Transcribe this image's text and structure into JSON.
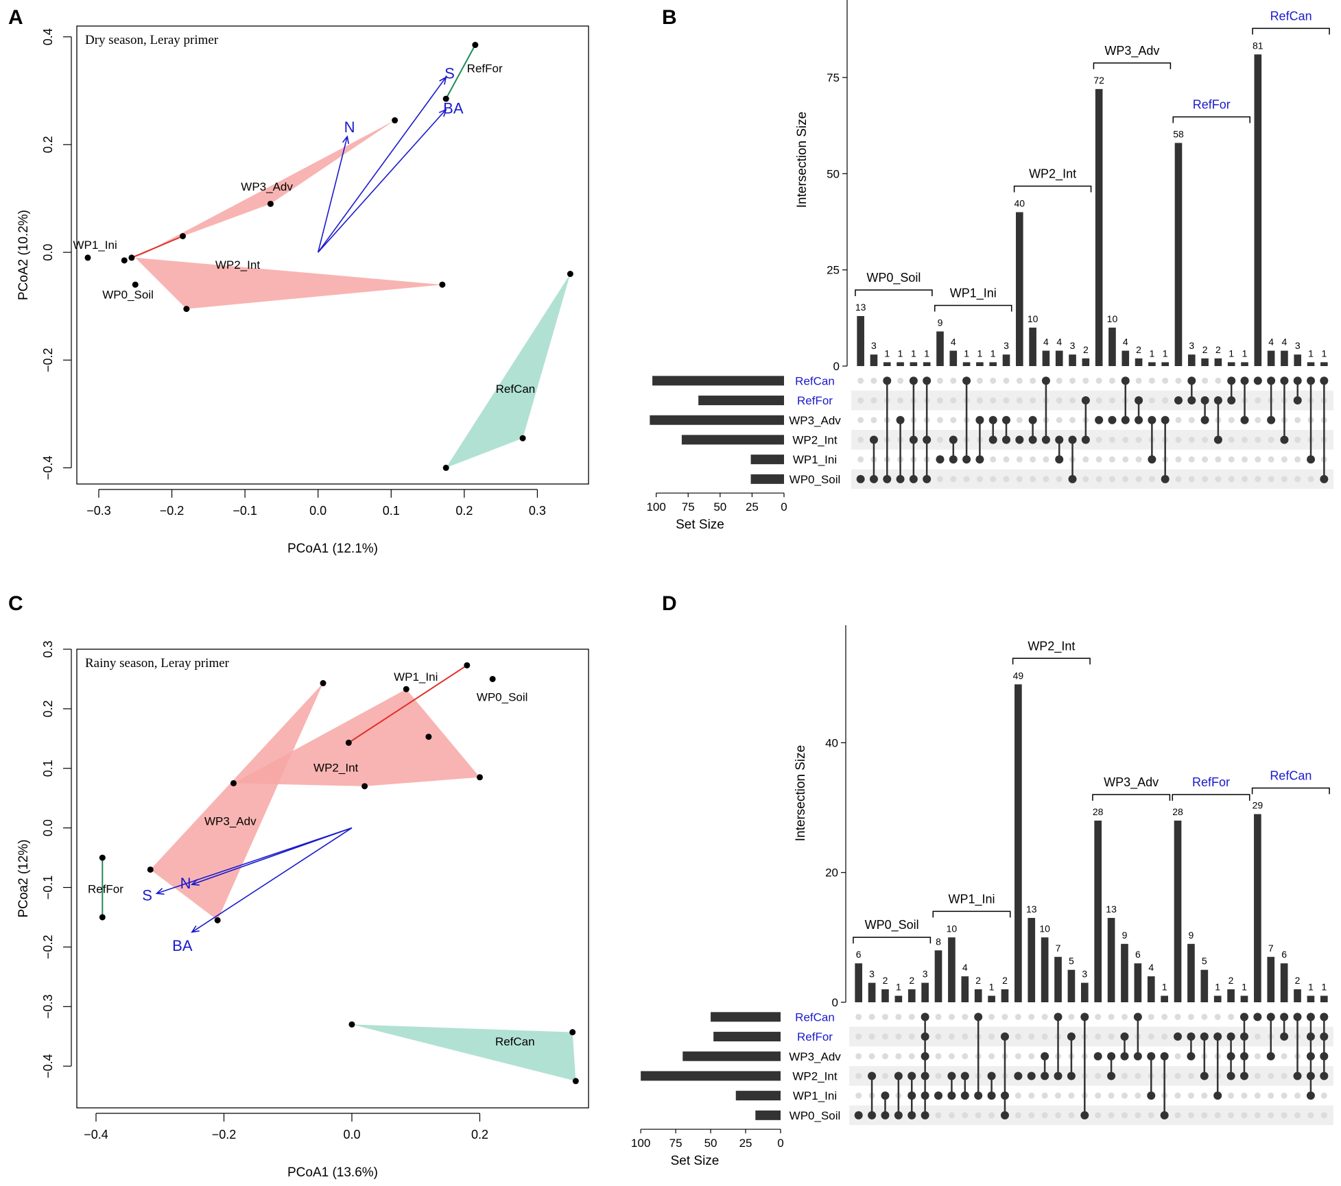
{
  "chart_data": [
    {
      "panel": "A",
      "type": "scatter",
      "title": "Dry season, Leray primer",
      "xlabel": "PCoA1 (12.1%)",
      "ylabel": "PCoA2 (10.2%)",
      "xlim": [
        -0.33,
        0.37
      ],
      "ylim": [
        -0.43,
        0.42
      ],
      "xticks": [
        -0.3,
        -0.2,
        -0.1,
        0.0,
        0.1,
        0.2,
        0.3
      ],
      "yticks": [
        -0.4,
        -0.2,
        0.0,
        0.2,
        0.4
      ],
      "xtick_labels": [
        "−0.3",
        "−0.2",
        "−0.1",
        "0.0",
        "0.1",
        "0.2",
        "0.3"
      ],
      "ytick_labels": [
        "−0.4",
        "−0.2",
        "0.0",
        "0.2",
        "0.4"
      ],
      "hulls": [
        {
          "name": "WP2_Int",
          "color": "#f7a7a4",
          "points": [
            [
              -0.25,
              -0.01
            ],
            [
              0.17,
              -0.06
            ],
            [
              -0.18,
              -0.105
            ]
          ]
        },
        {
          "name": "WP3_Adv",
          "color": "#f7a7a4",
          "points": [
            [
              -0.25,
              -0.01
            ],
            [
              -0.185,
              0.03
            ],
            [
              -0.065,
              0.09
            ],
            [
              0.105,
              0.245
            ]
          ]
        },
        {
          "name": "RefCan",
          "color": "#a3dccb",
          "points": [
            [
              0.345,
              -0.04
            ],
            [
              0.28,
              -0.345
            ],
            [
              0.175,
              -0.4
            ]
          ]
        }
      ],
      "segments": [
        {
          "name": "RefFor",
          "color": "#1e8a5a",
          "points": [
            [
              0.215,
              0.385
            ],
            [
              0.175,
              0.285
            ]
          ]
        },
        {
          "name": "WP1_Ini",
          "color": "#e0302a",
          "points": [
            [
              -0.255,
              -0.01
            ],
            [
              -0.185,
              0.03
            ]
          ]
        }
      ],
      "points": [
        [
          -0.315,
          -0.01
        ],
        [
          -0.265,
          -0.015
        ],
        [
          -0.255,
          -0.01
        ],
        [
          -0.25,
          -0.06
        ],
        [
          -0.18,
          -0.105
        ],
        [
          -0.185,
          0.03
        ],
        [
          -0.065,
          0.09
        ],
        [
          0.105,
          0.245
        ],
        [
          0.17,
          -0.06
        ],
        [
          0.175,
          0.285
        ],
        [
          0.215,
          0.385
        ],
        [
          0.345,
          -0.04
        ],
        [
          0.28,
          -0.345
        ],
        [
          0.175,
          -0.4
        ]
      ],
      "group_labels": [
        {
          "text": "WP1_Ini",
          "x": -0.305,
          "y": 0.012
        },
        {
          "text": "WP0_Soil",
          "x": -0.26,
          "y": -0.08
        },
        {
          "text": "WP2_Int",
          "x": -0.11,
          "y": -0.025
        },
        {
          "text": "WP3_Adv",
          "x": -0.07,
          "y": 0.12
        },
        {
          "text": "RefFor",
          "x": 0.228,
          "y": 0.34
        },
        {
          "text": "RefCan",
          "x": 0.27,
          "y": -0.255
        }
      ],
      "arrows": [
        {
          "label": "N",
          "from": [
            0.0,
            0.0
          ],
          "to": [
            0.04,
            0.215
          ],
          "label_at": [
            0.043,
            0.23
          ]
        },
        {
          "label": "S",
          "from": [
            0.0,
            0.0
          ],
          "to": [
            0.175,
            0.325
          ],
          "label_at": [
            0.18,
            0.33
          ]
        },
        {
          "label": "BA",
          "from": [
            0.0,
            0.0
          ],
          "to": [
            0.175,
            0.265
          ],
          "label_at": [
            0.185,
            0.265
          ]
        }
      ]
    },
    {
      "panel": "B",
      "type": "upset",
      "ylabel": "Intersection Size",
      "ylim": [
        0,
        93
      ],
      "yticks": [
        0,
        25,
        50,
        75
      ],
      "sets": [
        "RefCan",
        "RefFor",
        "WP3_Adv",
        "WP2_Int",
        "WP1_Ini",
        "WP0_Soil"
      ],
      "set_label_colors": [
        "#1a1acc",
        "#1a1acc",
        "#000000",
        "#000000",
        "#000000",
        "#000000"
      ],
      "set_sizes": [
        103,
        67,
        105,
        80,
        26,
        26
      ],
      "set_size_max": 110,
      "set_size_ticks": [
        100,
        75,
        50,
        25,
        0
      ],
      "set_size_label": "Set Size",
      "intersections": [
        {
          "size": 13,
          "sets": [
            5
          ]
        },
        {
          "size": 3,
          "sets": [
            3,
            5
          ]
        },
        {
          "size": 1,
          "sets": [
            0,
            5
          ]
        },
        {
          "size": 1,
          "sets": [
            2,
            5
          ]
        },
        {
          "size": 1,
          "sets": [
            0,
            3,
            5
          ]
        },
        {
          "size": 1,
          "sets": [
            0,
            3,
            5
          ]
        },
        {
          "size": 9,
          "sets": [
            4
          ]
        },
        {
          "size": 4,
          "sets": [
            3,
            4
          ]
        },
        {
          "size": 1,
          "sets": [
            0,
            4
          ]
        },
        {
          "size": 1,
          "sets": [
            2,
            4
          ]
        },
        {
          "size": 1,
          "sets": [
            2,
            3
          ]
        },
        {
          "size": 3,
          "sets": [
            2,
            3
          ]
        },
        {
          "size": 40,
          "sets": [
            3
          ]
        },
        {
          "size": 10,
          "sets": [
            2,
            3
          ]
        },
        {
          "size": 4,
          "sets": [
            0,
            3
          ]
        },
        {
          "size": 4,
          "sets": [
            3,
            4
          ]
        },
        {
          "size": 3,
          "sets": [
            3,
            5
          ]
        },
        {
          "size": 2,
          "sets": [
            1,
            3
          ]
        },
        {
          "size": 72,
          "sets": [
            2
          ]
        },
        {
          "size": 10,
          "sets": [
            2
          ]
        },
        {
          "size": 4,
          "sets": [
            0,
            2
          ]
        },
        {
          "size": 2,
          "sets": [
            1,
            2
          ]
        },
        {
          "size": 1,
          "sets": [
            2,
            4
          ]
        },
        {
          "size": 1,
          "sets": [
            2,
            5
          ]
        },
        {
          "size": 58,
          "sets": [
            1
          ]
        },
        {
          "size": 3,
          "sets": [
            0,
            1
          ]
        },
        {
          "size": 2,
          "sets": [
            1,
            2
          ]
        },
        {
          "size": 2,
          "sets": [
            1,
            3
          ]
        },
        {
          "size": 1,
          "sets": [
            0,
            1
          ]
        },
        {
          "size": 1,
          "sets": [
            0,
            2
          ]
        },
        {
          "size": 81,
          "sets": [
            0
          ]
        },
        {
          "size": 4,
          "sets": [
            0,
            2
          ]
        },
        {
          "size": 4,
          "sets": [
            0,
            3
          ]
        },
        {
          "size": 3,
          "sets": [
            0,
            1
          ]
        },
        {
          "size": 1,
          "sets": [
            0,
            4
          ]
        },
        {
          "size": 1,
          "sets": [
            0,
            5
          ]
        }
      ],
      "groups": [
        {
          "label": "WP0_Soil",
          "color": "#000000",
          "from": 0,
          "to": 5
        },
        {
          "label": "WP1_Ini",
          "color": "#000000",
          "from": 6,
          "to": 11
        },
        {
          "label": "WP2_Int",
          "color": "#000000",
          "from": 12,
          "to": 17
        },
        {
          "label": "WP3_Adv",
          "color": "#000000",
          "from": 18,
          "to": 23
        },
        {
          "label": "RefFor",
          "color": "#1a1acc",
          "from": 24,
          "to": 29
        },
        {
          "label": "RefCan",
          "color": "#1a1acc",
          "from": 30,
          "to": 35
        }
      ]
    },
    {
      "panel": "C",
      "type": "scatter",
      "title": "Rainy season, Leray primer",
      "xlabel": "PCoA1 (13.6%)",
      "ylabel": "PCoa2 (12%)",
      "xlim": [
        -0.43,
        0.37
      ],
      "ylim": [
        -0.47,
        0.3
      ],
      "xticks": [
        -0.4,
        -0.2,
        0.0,
        0.2
      ],
      "yticks": [
        -0.4,
        -0.3,
        -0.2,
        -0.1,
        0.0,
        0.1,
        0.2,
        0.3
      ],
      "xtick_labels": [
        "−0.4",
        "−0.2",
        "0.0",
        "0.2"
      ],
      "ytick_labels": [
        "−0.4",
        "−0.3",
        "−0.2",
        "−0.1",
        "0.0",
        "0.1",
        "0.2",
        "0.3"
      ],
      "hulls": [
        {
          "name": "WP3_Adv",
          "color": "#f7a7a4",
          "points": [
            [
              -0.045,
              0.243
            ],
            [
              -0.315,
              -0.07
            ],
            [
              -0.21,
              -0.155
            ]
          ]
        },
        {
          "name": "WP2_Int",
          "color": "#f7a7a4",
          "points": [
            [
              -0.185,
              0.075
            ],
            [
              0.085,
              0.233
            ],
            [
              0.2,
              0.085
            ],
            [
              0.02,
              0.07
            ]
          ]
        },
        {
          "name": "RefCan",
          "color": "#a3dccb",
          "points": [
            [
              0.0,
              -0.33
            ],
            [
              0.345,
              -0.343
            ],
            [
              0.35,
              -0.425
            ]
          ]
        }
      ],
      "segments": [
        {
          "name": "RefFor",
          "color": "#1e8a5a",
          "points": [
            [
              -0.39,
              -0.05
            ],
            [
              -0.39,
              -0.15
            ]
          ]
        },
        {
          "name": "WP1_Ini",
          "color": "#e0302a",
          "points": [
            [
              -0.005,
              0.143
            ],
            [
              0.18,
              0.273
            ]
          ]
        }
      ],
      "points": [
        [
          -0.045,
          0.243
        ],
        [
          -0.315,
          -0.07
        ],
        [
          -0.21,
          -0.155
        ],
        [
          -0.185,
          0.075
        ],
        [
          0.085,
          0.233
        ],
        [
          0.2,
          0.085
        ],
        [
          0.02,
          0.07
        ],
        [
          0.12,
          0.153
        ],
        [
          -0.005,
          0.143
        ],
        [
          0.18,
          0.273
        ],
        [
          0.22,
          0.25
        ],
        [
          -0.39,
          -0.05
        ],
        [
          -0.39,
          -0.15
        ],
        [
          0.0,
          -0.33
        ],
        [
          0.345,
          -0.343
        ],
        [
          0.35,
          -0.425
        ]
      ],
      "group_labels": [
        {
          "text": "WP1_Ini",
          "x": 0.1,
          "y": 0.252
        },
        {
          "text": "WP0_Soil",
          "x": 0.235,
          "y": 0.218
        },
        {
          "text": "WP2_Int",
          "x": -0.025,
          "y": 0.1
        },
        {
          "text": "WP3_Adv",
          "x": -0.19,
          "y": 0.01
        },
        {
          "text": "RefFor",
          "x": -0.385,
          "y": -0.104
        },
        {
          "text": "RefCan",
          "x": 0.255,
          "y": -0.36
        }
      ],
      "arrows": [
        {
          "label": "N",
          "from": [
            0.0,
            0.0
          ],
          "to": [
            -0.25,
            -0.095
          ],
          "label_at": [
            -0.26,
            -0.095
          ]
        },
        {
          "label": "S",
          "from": [
            0.0,
            0.0
          ],
          "to": [
            -0.305,
            -0.11
          ],
          "label_at": [
            -0.32,
            -0.115
          ]
        },
        {
          "label": "BA",
          "from": [
            0.0,
            0.0
          ],
          "to": [
            -0.25,
            -0.175
          ],
          "label_at": [
            -0.265,
            -0.2
          ]
        }
      ]
    },
    {
      "panel": "D",
      "type": "upset",
      "ylabel": "Intersection Size",
      "ylim": [
        0,
        56
      ],
      "yticks": [
        0,
        20,
        40
      ],
      "sets": [
        "RefCan",
        "RefFor",
        "WP3_Adv",
        "WP2_Int",
        "WP1_Ini",
        "WP0_Soil"
      ],
      "set_label_colors": [
        "#1a1acc",
        "#1a1acc",
        "#000000",
        "#000000",
        "#000000",
        "#000000"
      ],
      "set_sizes": [
        50,
        48,
        70,
        100,
        32,
        18
      ],
      "set_size_max": 103,
      "set_size_ticks": [
        100,
        75,
        50,
        25,
        0
      ],
      "set_size_label": "Set Size",
      "intersections": [
        {
          "size": 6,
          "sets": [
            5
          ]
        },
        {
          "size": 3,
          "sets": [
            3,
            5
          ]
        },
        {
          "size": 2,
          "sets": [
            4,
            5
          ]
        },
        {
          "size": 1,
          "sets": [
            3,
            5
          ]
        },
        {
          "size": 2,
          "sets": [
            3,
            4,
            5
          ]
        },
        {
          "size": 3,
          "sets": [
            0,
            1,
            2,
            3,
            4,
            5
          ]
        },
        {
          "size": 8,
          "sets": [
            4
          ]
        },
        {
          "size": 10,
          "sets": [
            3,
            4
          ]
        },
        {
          "size": 4,
          "sets": [
            3,
            4
          ]
        },
        {
          "size": 2,
          "sets": [
            0,
            4
          ]
        },
        {
          "size": 1,
          "sets": [
            3,
            4
          ]
        },
        {
          "size": 2,
          "sets": [
            1,
            4,
            5
          ]
        },
        {
          "size": 49,
          "sets": [
            3
          ]
        },
        {
          "size": 13,
          "sets": [
            3
          ]
        },
        {
          "size": 10,
          "sets": [
            2,
            3
          ]
        },
        {
          "size": 7,
          "sets": [
            0,
            3
          ]
        },
        {
          "size": 5,
          "sets": [
            1,
            3
          ]
        },
        {
          "size": 3,
          "sets": [
            0,
            5
          ]
        },
        {
          "size": 28,
          "sets": [
            2
          ]
        },
        {
          "size": 13,
          "sets": [
            2,
            3
          ]
        },
        {
          "size": 9,
          "sets": [
            1,
            2
          ]
        },
        {
          "size": 6,
          "sets": [
            0,
            2
          ]
        },
        {
          "size": 4,
          "sets": [
            2,
            4
          ]
        },
        {
          "size": 1,
          "sets": [
            2,
            5
          ]
        },
        {
          "size": 28,
          "sets": [
            1
          ]
        },
        {
          "size": 9,
          "sets": [
            1,
            2
          ]
        },
        {
          "size": 5,
          "sets": [
            1,
            3
          ]
        },
        {
          "size": 1,
          "sets": [
            1,
            4
          ]
        },
        {
          "size": 2,
          "sets": [
            1,
            2,
            3
          ]
        },
        {
          "size": 1,
          "sets": [
            0,
            1,
            2,
            3
          ]
        },
        {
          "size": 29,
          "sets": [
            0
          ]
        },
        {
          "size": 7,
          "sets": [
            0,
            2
          ]
        },
        {
          "size": 6,
          "sets": [
            0,
            1
          ]
        },
        {
          "size": 2,
          "sets": [
            0,
            3
          ]
        },
        {
          "size": 1,
          "sets": [
            0,
            1,
            2,
            3,
            4
          ]
        },
        {
          "size": 1,
          "sets": [
            0,
            1,
            2,
            3
          ]
        }
      ],
      "groups": [
        {
          "label": "WP0_Soil",
          "color": "#000000",
          "from": 0,
          "to": 5
        },
        {
          "label": "WP1_Ini",
          "color": "#000000",
          "from": 6,
          "to": 11
        },
        {
          "label": "WP2_Int",
          "color": "#000000",
          "from": 12,
          "to": 17
        },
        {
          "label": "WP3_Adv",
          "color": "#000000",
          "from": 18,
          "to": 23
        },
        {
          "label": "RefFor",
          "color": "#1a1acc",
          "from": 24,
          "to": 29
        },
        {
          "label": "RefCan",
          "color": "#1a1acc",
          "from": 30,
          "to": 35
        }
      ]
    }
  ]
}
